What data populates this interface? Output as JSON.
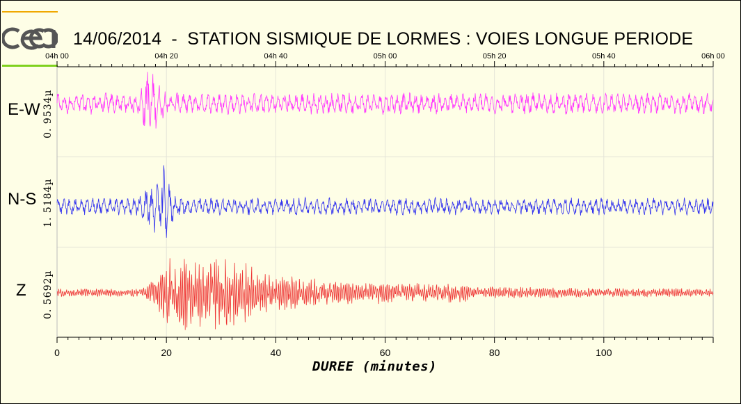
{
  "title": "14/06/2014  -  STATION SISMIQUE DE LORMES : VOIES LONGUE PERIODE",
  "logo": {
    "text": "cea",
    "colors": [
      "#f0a800",
      "#7fd11e"
    ]
  },
  "chart_data": {
    "type": "line",
    "title": "14/06/2014  -  STATION SISMIQUE DE LORMES : VOIES LONGUE PERIODE",
    "xlabel": "DUREE (minutes)",
    "xlim": [
      0,
      120
    ],
    "x_ticks": [
      "0",
      "20",
      "40",
      "60",
      "80",
      "100"
    ],
    "x_tick_values": [
      0,
      20,
      40,
      60,
      80,
      100
    ],
    "top_time_ticks": [
      "04h 00",
      "04h 20",
      "04h 40",
      "05h 00",
      "05h 20",
      "05h 40",
      "06h 00"
    ],
    "top_time_tick_values": [
      0,
      20,
      40,
      60,
      80,
      100,
      120
    ],
    "grid": true,
    "series": [
      {
        "name": "E-W",
        "amplitude_label": "0. 9534µ",
        "color": "#ff33ff",
        "event_start_min": 14.5,
        "event_peak_min": 16.5,
        "event_end_min": 20
      },
      {
        "name": "N-S",
        "amplitude_label": "1. 5184µ",
        "color": "#3333ee",
        "event_start_min": 14,
        "event_peak_min": 19.2,
        "event_end_min": 22
      },
      {
        "name": "Z",
        "amplitude_label": "0. 5692µ",
        "color": "#ee3333",
        "event_start_min": 15,
        "event_peak_min": 19.5,
        "event_end_min": 70
      }
    ]
  }
}
